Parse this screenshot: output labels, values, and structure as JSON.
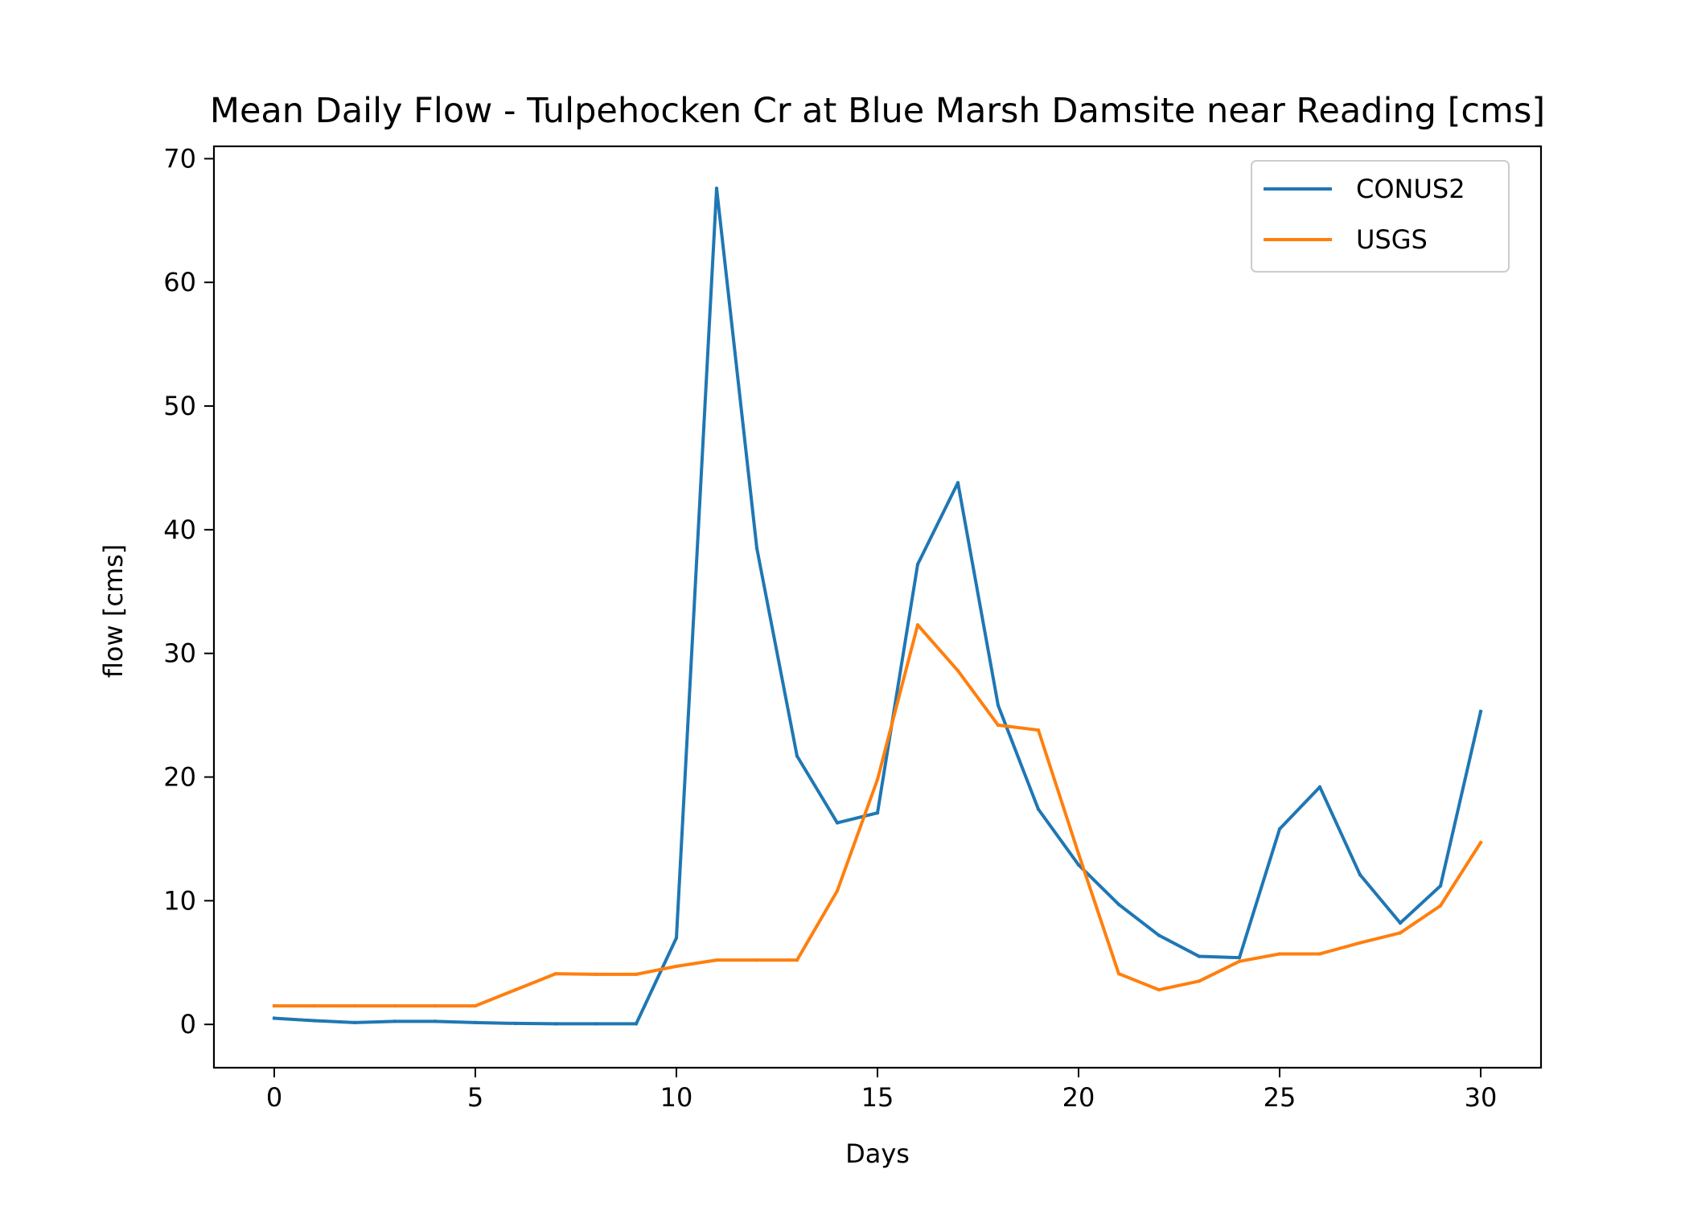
{
  "chart_data": {
    "type": "line",
    "title": "Mean Daily Flow - Tulpehocken Cr at Blue Marsh Damsite near Reading [cms]",
    "xlabel": "Days",
    "ylabel": "flow [cms]",
    "xlim": [
      -1.5,
      31.5
    ],
    "ylim": [
      -3.5,
      71
    ],
    "xticks": [
      0,
      5,
      10,
      15,
      20,
      25,
      30
    ],
    "yticks": [
      0,
      10,
      20,
      30,
      40,
      50,
      60,
      70
    ],
    "grid": false,
    "legend_position": "top-right",
    "x": [
      0,
      1,
      2,
      3,
      4,
      5,
      6,
      7,
      8,
      9,
      10,
      11,
      12,
      13,
      14,
      15,
      16,
      17,
      18,
      19,
      20,
      21,
      22,
      23,
      24,
      25,
      26,
      27,
      28,
      29,
      30
    ],
    "series": [
      {
        "name": "CONUS2",
        "color": "#1f77b4",
        "values": [
          0.5,
          0.3,
          0.15,
          0.25,
          0.25,
          0.15,
          0.08,
          0.05,
          0.05,
          0.05,
          7.0,
          67.6,
          38.5,
          21.7,
          16.3,
          17.1,
          37.2,
          43.8,
          25.8,
          17.4,
          12.9,
          9.7,
          7.2,
          5.5,
          5.4,
          15.8,
          19.2,
          12.1,
          8.2,
          11.2,
          25.3
        ]
      },
      {
        "name": "USGS",
        "color": "#ff7f0e",
        "values": [
          1.5,
          1.5,
          1.5,
          1.5,
          1.5,
          1.5,
          2.8,
          4.1,
          4.05,
          4.05,
          4.7,
          5.2,
          5.2,
          5.2,
          10.8,
          19.8,
          32.3,
          28.6,
          24.2,
          23.8,
          13.8,
          4.1,
          2.8,
          3.5,
          5.1,
          5.7,
          5.7,
          6.6,
          7.4,
          9.6,
          14.7
        ]
      }
    ]
  }
}
